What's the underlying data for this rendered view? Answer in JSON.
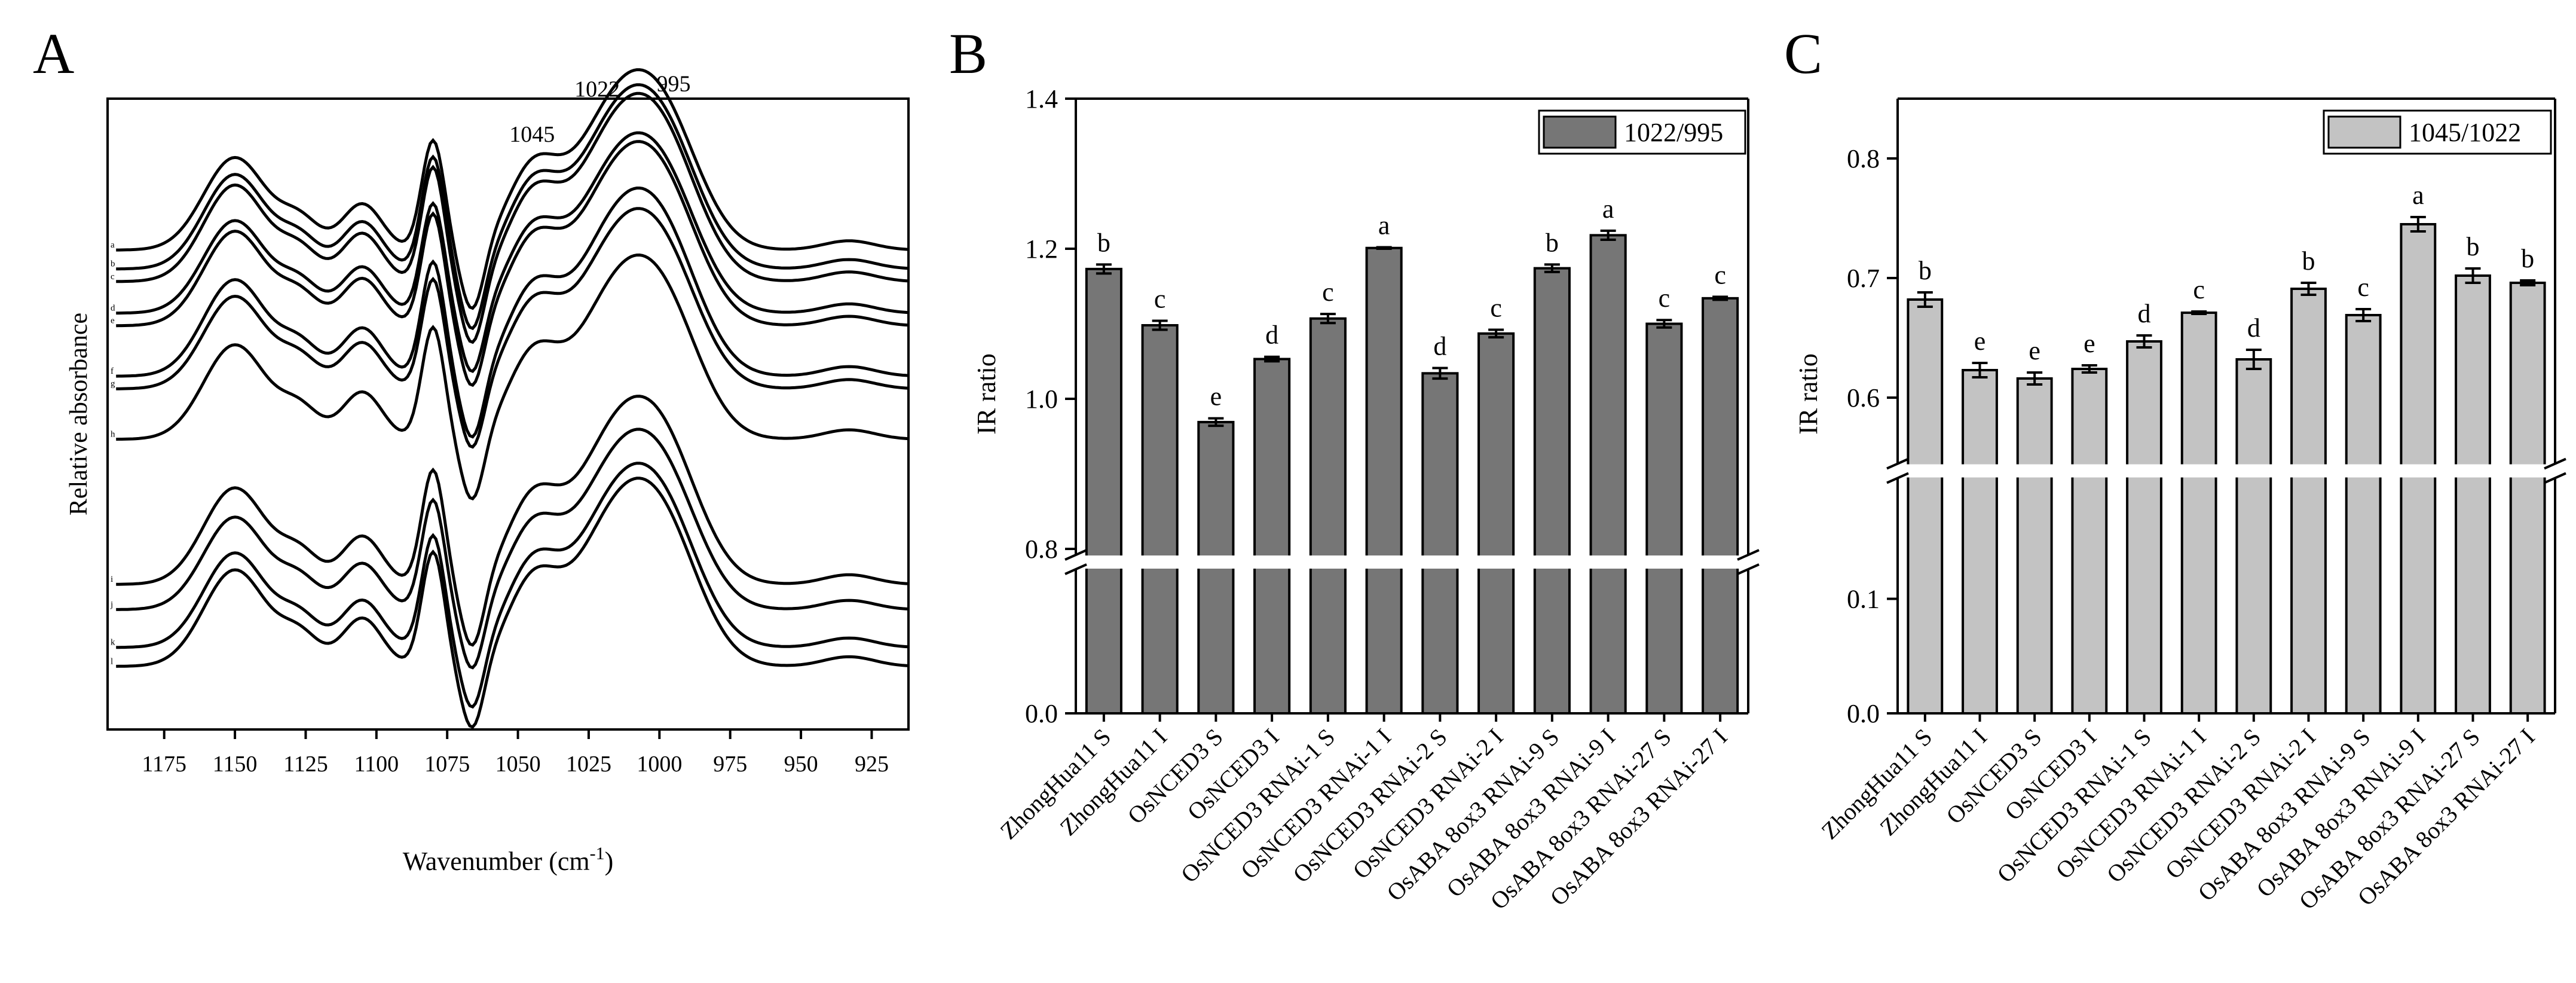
{
  "chart_data": [
    {
      "panel": "A",
      "type": "line",
      "xlabel": "Wavenumber (cm",
      "xlabel_superscript": "-1",
      "xlabel_close": ")",
      "ylabel": "Relative absorbance",
      "xlim": [
        1195,
        912
      ],
      "xticks": [
        1175,
        1150,
        1125,
        1100,
        1075,
        1050,
        1025,
        1000,
        975,
        950,
        925
      ],
      "peak_annotations": [
        {
          "label": "1045",
          "x": 1045
        },
        {
          "label": "1022",
          "x": 1022
        },
        {
          "label": "995",
          "x": 995
        }
      ],
      "series": [
        {
          "name": "a",
          "offset": 0.76
        },
        {
          "name": "b",
          "offset": 0.73
        },
        {
          "name": "c",
          "offset": 0.71
        },
        {
          "name": "d",
          "offset": 0.66
        },
        {
          "name": "e",
          "offset": 0.64
        },
        {
          "name": "f",
          "offset": 0.56
        },
        {
          "name": "g",
          "offset": 0.54
        },
        {
          "name": "h",
          "offset": 0.46
        },
        {
          "name": "i",
          "offset": 0.23
        },
        {
          "name": "j",
          "offset": 0.19
        },
        {
          "name": "k",
          "offset": 0.13
        },
        {
          "name": "l",
          "offset": 0.1
        }
      ]
    },
    {
      "panel": "B",
      "type": "bar",
      "ylabel": "IR ratio",
      "legend": "1022/995",
      "color": "#767676",
      "yticks_upper": [
        "0.8",
        "1.0",
        "1.2",
        "1.4"
      ],
      "yticks_lower": [
        "0.0"
      ],
      "ylim_upper": [
        0.8,
        1.4
      ],
      "ylim_lower": [
        0.0,
        0.2
      ],
      "categories": [
        "ZhongHua11 S",
        "ZhongHua11 I",
        "OsNCED3 S",
        "OsNCED3 I",
        "OsNCED3 RNAi-1 S",
        "OsNCED3 RNAi-1 I",
        "OsNCED3 RNAi-2 S",
        "OsNCED3 RNAi-2 I",
        "OsABA 8ox3 RNAi-9 S",
        "OsABA 8ox3 RNAi-9 I",
        "OsABA 8ox3 RNAi-27 S",
        "OsABA 8ox3 RNAi-27 I"
      ],
      "values": [
        1.173,
        1.098,
        0.969,
        1.053,
        1.107,
        1.201,
        1.034,
        1.087,
        1.174,
        1.218,
        1.1,
        1.134
      ],
      "errors": [
        0.006,
        0.006,
        0.005,
        0.003,
        0.006,
        0.001,
        0.007,
        0.005,
        0.005,
        0.006,
        0.005,
        0.002
      ],
      "letters": [
        "b",
        "c",
        "e",
        "d",
        "c",
        "a",
        "d",
        "c",
        "b",
        "a",
        "c",
        "c"
      ]
    },
    {
      "panel": "C",
      "type": "bar",
      "ylabel": "IR ratio",
      "legend": "1045/1022",
      "color": "#c3c3c3",
      "yticks_upper": [
        "0.6",
        "0.7",
        "0.8"
      ],
      "yticks_lower": [
        "0.0",
        "0.1"
      ],
      "ylim_upper": [
        0.55,
        0.85
      ],
      "ylim_lower": [
        0.0,
        0.2
      ],
      "categories": [
        "ZhongHua11 S",
        "ZhongHua11 I",
        "OsNCED3 S",
        "OsNCED3 I",
        "OsNCED3 RNAi-1 S",
        "OsNCED3 RNAi-1 I",
        "OsNCED3 RNAi-2 S",
        "OsNCED3 RNAi-2 I",
        "OsABA 8ox3 RNAi-9 S",
        "OsABA 8ox3 RNAi-9 I",
        "OsABA 8ox3 RNAi-27 S",
        "OsABA 8ox3 RNAi-27 I"
      ],
      "values": [
        0.682,
        0.623,
        0.616,
        0.624,
        0.647,
        0.671,
        0.632,
        0.691,
        0.669,
        0.745,
        0.702,
        0.696
      ],
      "errors": [
        0.006,
        0.006,
        0.005,
        0.003,
        0.005,
        0.001,
        0.008,
        0.005,
        0.005,
        0.006,
        0.006,
        0.002
      ],
      "letters": [
        "b",
        "e",
        "e",
        "e",
        "d",
        "c",
        "d",
        "b",
        "c",
        "a",
        "b",
        "b"
      ]
    }
  ]
}
